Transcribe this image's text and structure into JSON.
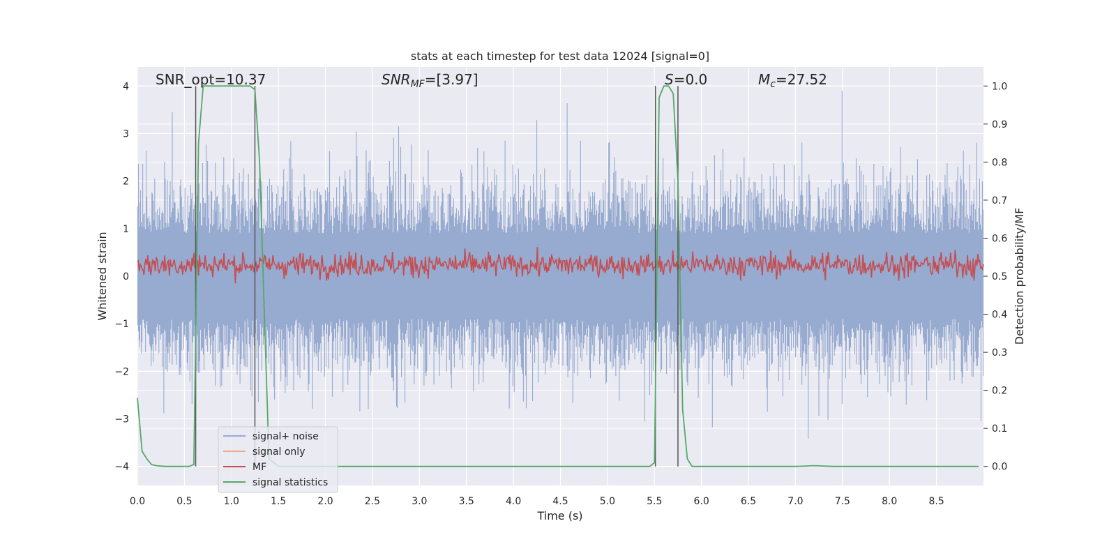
{
  "chart_data": {
    "type": "line",
    "title": "stats at each timestep for test data 12024 [signal=0]",
    "xlabel": "Time (s)",
    "ylabel": "Whitened strain",
    "ylabel_right": "Detection probability/MF",
    "xlim": [
      0,
      9.0
    ],
    "ylim": [
      -4.4,
      4.4
    ],
    "ylim_right": [
      -0.05,
      1.05
    ],
    "grid": true,
    "legend_position": "lower-left",
    "x_ticks": [
      "0.0",
      "0.5",
      "1.0",
      "1.5",
      "2.0",
      "2.5",
      "3.0",
      "3.5",
      "4.0",
      "4.5",
      "5.0",
      "5.5",
      "6.0",
      "6.5",
      "7.0",
      "7.5",
      "8.0",
      "8.5"
    ],
    "y_ticks": [
      "−4",
      "−3",
      "−2",
      "−1",
      "0",
      "1",
      "2",
      "3",
      "4"
    ],
    "y_ticks_right": [
      "0.0",
      "0.1",
      "0.2",
      "0.3",
      "0.4",
      "0.5",
      "0.6",
      "0.7",
      "0.8",
      "0.9",
      "1.0"
    ],
    "annotations": {
      "snr_opt": "SNR_opt=10.37",
      "snr_mf_label": "SNR",
      "snr_mf_sub": "MF",
      "snr_mf_value": "=[3.97]",
      "s_label": "S",
      "s_value": "=0.0",
      "mc_label": "M",
      "mc_sub": "c",
      "mc_value": "=27.52"
    },
    "vertical_lines_x": [
      0.62,
      1.25,
      5.51,
      5.75
    ],
    "series": [
      {
        "name": "signal+ noise",
        "color": "#97aacf",
        "axis": "left",
        "description_range": [
          -4.0,
          4.0
        ]
      },
      {
        "name": "signal only",
        "color": "#f0a68a",
        "axis": "left"
      },
      {
        "name": "MF",
        "color": "#c44e52",
        "axis": "right",
        "range": [
          0.47,
          0.6
        ]
      },
      {
        "name": "signal statistics",
        "color": "#55a868",
        "axis": "right",
        "x": [
          0.0,
          0.05,
          0.1,
          0.15,
          0.2,
          0.3,
          0.4,
          0.5,
          0.55,
          0.6,
          0.65,
          0.7,
          0.75,
          0.8,
          1.0,
          1.2,
          1.25,
          1.3,
          1.35,
          1.4,
          1.5,
          2.0,
          3.0,
          4.0,
          5.0,
          5.45,
          5.5,
          5.55,
          5.6,
          5.65,
          5.7,
          5.75,
          5.8,
          5.85,
          5.9,
          6.0,
          7.0,
          7.2,
          7.4,
          8.0,
          8.95
        ],
        "y": [
          0.18,
          0.04,
          0.02,
          0.005,
          0.002,
          0.0,
          0.0,
          0.0,
          0.0,
          0.005,
          0.85,
          1.0,
          1.0,
          1.0,
          1.0,
          1.0,
          0.99,
          0.8,
          0.4,
          0.02,
          0.0,
          0.0,
          0.0,
          0.0,
          0.0,
          0.0,
          0.01,
          0.97,
          1.0,
          1.0,
          0.98,
          0.75,
          0.15,
          0.02,
          0.0,
          0.0,
          0.0,
          0.002,
          0.0,
          0.0,
          0.0
        ]
      }
    ]
  }
}
